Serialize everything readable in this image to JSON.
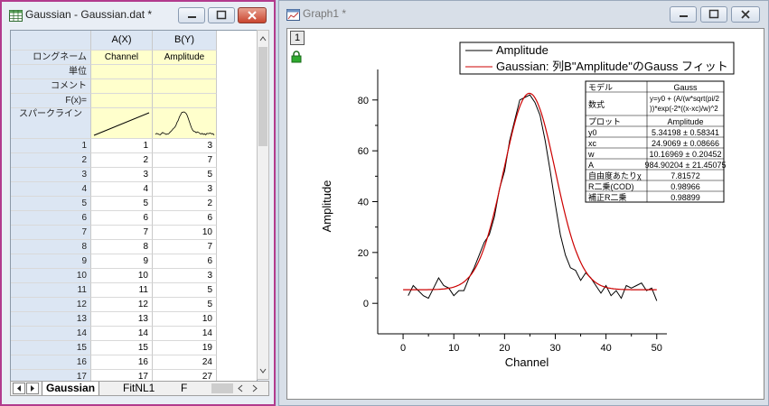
{
  "worksheet": {
    "title": "Gaussian - Gaussian.dat *",
    "column_headers": [
      "A(X)",
      "B(Y)"
    ],
    "meta_rows": [
      {
        "label": "ロングネーム",
        "a": "Channel",
        "b": "Amplitude"
      },
      {
        "label": "単位",
        "a": "",
        "b": ""
      },
      {
        "label": "コメント",
        "a": "",
        "b": ""
      },
      {
        "label": "F(x)=",
        "a": "",
        "b": ""
      }
    ],
    "sparkline_label": "スパークライン",
    "rows": [
      {
        "n": "1",
        "a": "1",
        "b": "3"
      },
      {
        "n": "2",
        "a": "2",
        "b": "7"
      },
      {
        "n": "3",
        "a": "3",
        "b": "5"
      },
      {
        "n": "4",
        "a": "4",
        "b": "3"
      },
      {
        "n": "5",
        "a": "5",
        "b": "2"
      },
      {
        "n": "6",
        "a": "6",
        "b": "6"
      },
      {
        "n": "7",
        "a": "7",
        "b": "10"
      },
      {
        "n": "8",
        "a": "8",
        "b": "7"
      },
      {
        "n": "9",
        "a": "9",
        "b": "6"
      },
      {
        "n": "10",
        "a": "10",
        "b": "3"
      },
      {
        "n": "11",
        "a": "11",
        "b": "5"
      },
      {
        "n": "12",
        "a": "12",
        "b": "5"
      },
      {
        "n": "13",
        "a": "13",
        "b": "10"
      },
      {
        "n": "14",
        "a": "14",
        "b": "14"
      },
      {
        "n": "15",
        "a": "15",
        "b": "19"
      },
      {
        "n": "16",
        "a": "16",
        "b": "24"
      },
      {
        "n": "17",
        "a": "17",
        "b": "27"
      }
    ],
    "tabs": [
      "Gaussian",
      "FitNL1",
      "F"
    ]
  },
  "graph": {
    "title": "Graph1 *",
    "layer_label": "1"
  },
  "chart_data": {
    "type": "line",
    "xlabel": "Channel",
    "ylabel": "Amplitude",
    "xlim": [
      -5,
      52
    ],
    "ylim": [
      -12,
      92
    ],
    "xticks": [
      0,
      10,
      20,
      30,
      40,
      50
    ],
    "yticks": [
      0,
      20,
      40,
      60,
      80
    ],
    "legend_position": "top-right",
    "series": [
      {
        "name": "Amplitude",
        "color": "#000000",
        "x": [
          1,
          2,
          3,
          4,
          5,
          6,
          7,
          8,
          9,
          10,
          11,
          12,
          13,
          14,
          15,
          16,
          17,
          18,
          19,
          20,
          21,
          22,
          23,
          24,
          25,
          26,
          27,
          28,
          29,
          30,
          31,
          32,
          33,
          34,
          35,
          36,
          37,
          38,
          39,
          40,
          41,
          42,
          43,
          44,
          45,
          46,
          47,
          48,
          49,
          50
        ],
        "y": [
          3,
          7,
          5,
          3,
          2,
          6,
          10,
          7,
          6,
          3,
          5,
          5,
          10,
          14,
          19,
          24,
          27,
          34,
          45,
          52,
          64,
          72,
          80,
          81,
          82,
          79,
          74,
          64,
          52,
          39,
          27,
          19,
          14,
          13,
          9,
          12,
          10,
          7,
          4,
          7,
          3,
          5,
          2,
          7,
          6,
          7,
          8,
          5,
          6,
          1
        ]
      },
      {
        "name": "Gaussian: 列B\"Amplitude\"のGauss フィット",
        "color": "#cc0000",
        "fit": {
          "y0": 5.34198,
          "xc": 24.9069,
          "w": 10.16969,
          "A": 984.90204
        }
      }
    ]
  },
  "fit_table": [
    {
      "k": "モデル",
      "v": "Gauss"
    },
    {
      "k": "数式",
      "v": "y=y0 + (A/(w*sqrt(pi/2))*exp(-2*((x-xc)/w)^2"
    },
    {
      "k": "プロット",
      "v": "Amplitude"
    },
    {
      "k": "y0",
      "v": "5.34198 ± 0.58341"
    },
    {
      "k": "xc",
      "v": "24.9069 ± 0.08666"
    },
    {
      "k": "w",
      "v": "10.16969 ± 0.20452"
    },
    {
      "k": "A",
      "v": "984.90204 ± 21.45075"
    },
    {
      "k": "自由度あたりχ",
      "v": "7.81572"
    },
    {
      "k": "R二乗(COD)",
      "v": "0.98966"
    },
    {
      "k": "補正R二乗",
      "v": "0.98899"
    }
  ]
}
